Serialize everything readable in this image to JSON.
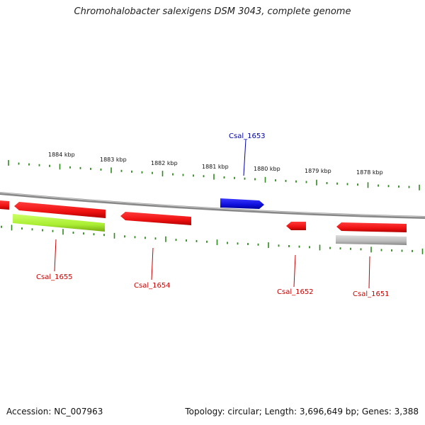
{
  "title": "Chromohalobacter salexigens DSM 3043, complete genome",
  "footer": {
    "accession": "Accession: NC_007963",
    "summary": "Topology: circular; Length: 3,696,649 bp; Genes: 3,388"
  },
  "scale": {
    "tick_labels": [
      "1884 kbp",
      "1883 kbp",
      "1882 kbp",
      "1881 kbp",
      "1880 kbp",
      "1879 kbp",
      "1878 kbp"
    ]
  },
  "genes": [
    {
      "label": "Csal_1655",
      "color": "#cc0000"
    },
    {
      "label": "Csal_1654",
      "color": "#cc0000"
    },
    {
      "label": "Csal_1653",
      "color": "#0000aa"
    },
    {
      "label": "Csal_1652",
      "color": "#cc0000"
    },
    {
      "label": "Csal_1651",
      "color": "#cc0000"
    }
  ],
  "colors": {
    "tick": "#2e8b1e",
    "backbone": "#888888",
    "gene_red": "#ee1111",
    "gene_blue": "#1010dd",
    "gene_green": "#aaee33",
    "gene_gray": "#bbbbbb",
    "label_red": "#cc0000",
    "label_blue": "#0000aa"
  }
}
